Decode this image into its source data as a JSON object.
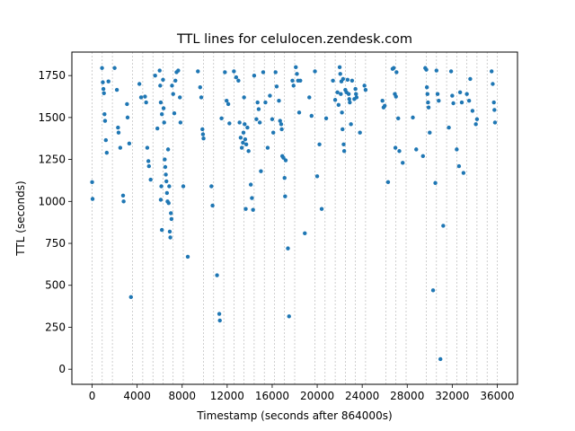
{
  "chart_data": {
    "type": "scatter",
    "title": "TTL lines for celulocen.zendesk.com",
    "xlabel": "Timestamp (seconds after 864000s)",
    "ylabel": "TTL (seconds)",
    "xlim": [
      -1800,
      37800
    ],
    "ylim": [
      -90,
      1890
    ],
    "xticks": [
      0,
      4000,
      8000,
      12000,
      16000,
      20000,
      24000,
      28000,
      32000,
      36000
    ],
    "yticks": [
      0,
      250,
      500,
      750,
      1000,
      1250,
      1500,
      1750
    ],
    "point_color": "#1f77b4",
    "grid": "vertical dashed lines at reset timestamps",
    "reset_lines": [
      0,
      900,
      1800,
      3600,
      4500,
      5400,
      6300,
      7200,
      8100,
      9900,
      10800,
      11700,
      12600,
      13500,
      14400,
      15300,
      16200,
      17100,
      18000,
      19800,
      20700,
      21600,
      22500,
      23400,
      24300,
      26100,
      27000,
      27900,
      29700,
      30600,
      31500,
      32400,
      33300,
      34200,
      35100,
      36000
    ],
    "points": [
      [
        0,
        1115
      ],
      [
        40,
        1015
      ],
      [
        880,
        1795
      ],
      [
        950,
        1710
      ],
      [
        1000,
        1670
      ],
      [
        1050,
        1645
      ],
      [
        1100,
        1520
      ],
      [
        1150,
        1480
      ],
      [
        1220,
        1365
      ],
      [
        1300,
        1290
      ],
      [
        1450,
        1715
      ],
      [
        2000,
        1795
      ],
      [
        2200,
        1665
      ],
      [
        2300,
        1440
      ],
      [
        2350,
        1410
      ],
      [
        2500,
        1320
      ],
      [
        2750,
        1035
      ],
      [
        2800,
        1000
      ],
      [
        3100,
        1580
      ],
      [
        3150,
        1500
      ],
      [
        3300,
        1345
      ],
      [
        3450,
        430
      ],
      [
        4200,
        1700
      ],
      [
        4350,
        1620
      ],
      [
        4700,
        1625
      ],
      [
        4800,
        1590
      ],
      [
        4900,
        1320
      ],
      [
        5000,
        1240
      ],
      [
        5050,
        1210
      ],
      [
        5200,
        1130
      ],
      [
        5600,
        1750
      ],
      [
        5800,
        1435
      ],
      [
        6000,
        1780
      ],
      [
        6050,
        1690
      ],
      [
        6100,
        1590
      ],
      [
        6100,
        1010
      ],
      [
        6150,
        1090
      ],
      [
        6200,
        1520
      ],
      [
        6200,
        830
      ],
      [
        6300,
        1725
      ],
      [
        6350,
        1555
      ],
      [
        6400,
        1470
      ],
      [
        6450,
        1250
      ],
      [
        6500,
        1205
      ],
      [
        6550,
        1160
      ],
      [
        6600,
        1120
      ],
      [
        6650,
        1050
      ],
      [
        6700,
        1000
      ],
      [
        6750,
        1310
      ],
      [
        6800,
        990
      ],
      [
        6850,
        1090
      ],
      [
        6900,
        820
      ],
      [
        6950,
        785
      ],
      [
        7000,
        930
      ],
      [
        7050,
        895
      ],
      [
        7100,
        1690
      ],
      [
        7200,
        1640
      ],
      [
        7300,
        1525
      ],
      [
        7400,
        1720
      ],
      [
        7500,
        1770
      ],
      [
        7650,
        1780
      ],
      [
        7800,
        1620
      ],
      [
        7850,
        1470
      ],
      [
        8100,
        1090
      ],
      [
        8500,
        670
      ],
      [
        9400,
        1775
      ],
      [
        9600,
        1680
      ],
      [
        9700,
        1620
      ],
      [
        9800,
        1430
      ],
      [
        9850,
        1400
      ],
      [
        9900,
        1375
      ],
      [
        10600,
        1090
      ],
      [
        10700,
        975
      ],
      [
        11100,
        560
      ],
      [
        11300,
        330
      ],
      [
        11350,
        290
      ],
      [
        11500,
        1495
      ],
      [
        11800,
        1770
      ],
      [
        11950,
        1600
      ],
      [
        12100,
        1580
      ],
      [
        12200,
        1465
      ],
      [
        12600,
        1775
      ],
      [
        12800,
        1740
      ],
      [
        13000,
        1720
      ],
      [
        13100,
        1470
      ],
      [
        13200,
        1380
      ],
      [
        13300,
        1320
      ],
      [
        13400,
        1350
      ],
      [
        13450,
        1410
      ],
      [
        13500,
        1620
      ],
      [
        13550,
        1460
      ],
      [
        13600,
        1370
      ],
      [
        13650,
        955
      ],
      [
        13700,
        1340
      ],
      [
        13800,
        1440
      ],
      [
        13900,
        1300
      ],
      [
        14100,
        1100
      ],
      [
        14200,
        1020
      ],
      [
        14300,
        950
      ],
      [
        14400,
        1750
      ],
      [
        14600,
        1490
      ],
      [
        14700,
        1590
      ],
      [
        14800,
        1550
      ],
      [
        14900,
        1470
      ],
      [
        15000,
        1180
      ],
      [
        15200,
        1770
      ],
      [
        15400,
        1590
      ],
      [
        15600,
        1320
      ],
      [
        15800,
        1630
      ],
      [
        16000,
        1490
      ],
      [
        16100,
        1410
      ],
      [
        16300,
        1770
      ],
      [
        16400,
        1685
      ],
      [
        16600,
        1600
      ],
      [
        16700,
        1480
      ],
      [
        16800,
        1460
      ],
      [
        16850,
        1430
      ],
      [
        16900,
        1270
      ],
      [
        17000,
        1260
      ],
      [
        17100,
        1140
      ],
      [
        17150,
        1030
      ],
      [
        17200,
        1245
      ],
      [
        17400,
        720
      ],
      [
        17500,
        315
      ],
      [
        17800,
        1720
      ],
      [
        17900,
        1690
      ],
      [
        18100,
        1800
      ],
      [
        18200,
        1760
      ],
      [
        18300,
        1720
      ],
      [
        18400,
        1530
      ],
      [
        18500,
        1720
      ],
      [
        18900,
        810
      ],
      [
        19300,
        1620
      ],
      [
        19500,
        1510
      ],
      [
        19800,
        1775
      ],
      [
        20000,
        1150
      ],
      [
        20200,
        1340
      ],
      [
        20400,
        955
      ],
      [
        20800,
        1495
      ],
      [
        21400,
        1720
      ],
      [
        21600,
        1605
      ],
      [
        21800,
        1650
      ],
      [
        21900,
        1575
      ],
      [
        22000,
        1800
      ],
      [
        22050,
        1760
      ],
      [
        22100,
        1640
      ],
      [
        22150,
        1715
      ],
      [
        22200,
        1530
      ],
      [
        22250,
        1430
      ],
      [
        22300,
        1730
      ],
      [
        22350,
        1340
      ],
      [
        22400,
        1300
      ],
      [
        22500,
        1665
      ],
      [
        22600,
        1650
      ],
      [
        22700,
        1725
      ],
      [
        22800,
        1640
      ],
      [
        22850,
        1610
      ],
      [
        22900,
        1590
      ],
      [
        23000,
        1460
      ],
      [
        23100,
        1720
      ],
      [
        23300,
        1610
      ],
      [
        23400,
        1670
      ],
      [
        23450,
        1640
      ],
      [
        23500,
        1620
      ],
      [
        23800,
        1410
      ],
      [
        24200,
        1690
      ],
      [
        24300,
        1665
      ],
      [
        25800,
        1600
      ],
      [
        25900,
        1560
      ],
      [
        26000,
        1570
      ],
      [
        26300,
        1115
      ],
      [
        26700,
        1790
      ],
      [
        26800,
        1795
      ],
      [
        26900,
        1640
      ],
      [
        26950,
        1320
      ],
      [
        27000,
        1625
      ],
      [
        27050,
        1770
      ],
      [
        27200,
        1495
      ],
      [
        27300,
        1300
      ],
      [
        27600,
        1230
      ],
      [
        28500,
        1500
      ],
      [
        28800,
        1310
      ],
      [
        29400,
        1270
      ],
      [
        29600,
        1795
      ],
      [
        29700,
        1785
      ],
      [
        29750,
        1680
      ],
      [
        29800,
        1640
      ],
      [
        29850,
        1590
      ],
      [
        29900,
        1560
      ],
      [
        30000,
        1410
      ],
      [
        30300,
        470
      ],
      [
        30500,
        1110
      ],
      [
        30600,
        1780
      ],
      [
        30700,
        1640
      ],
      [
        30800,
        1600
      ],
      [
        30950,
        60
      ],
      [
        31200,
        855
      ],
      [
        31700,
        1440
      ],
      [
        31900,
        1775
      ],
      [
        32000,
        1630
      ],
      [
        32100,
        1585
      ],
      [
        32400,
        1310
      ],
      [
        32600,
        1210
      ],
      [
        32700,
        1650
      ],
      [
        32850,
        1590
      ],
      [
        33000,
        1170
      ],
      [
        33300,
        1640
      ],
      [
        33500,
        1600
      ],
      [
        33600,
        1730
      ],
      [
        33800,
        1540
      ],
      [
        34100,
        1460
      ],
      [
        34200,
        1490
      ],
      [
        35500,
        1775
      ],
      [
        35600,
        1700
      ],
      [
        35700,
        1590
      ],
      [
        35750,
        1545
      ],
      [
        35800,
        1470
      ]
    ]
  }
}
